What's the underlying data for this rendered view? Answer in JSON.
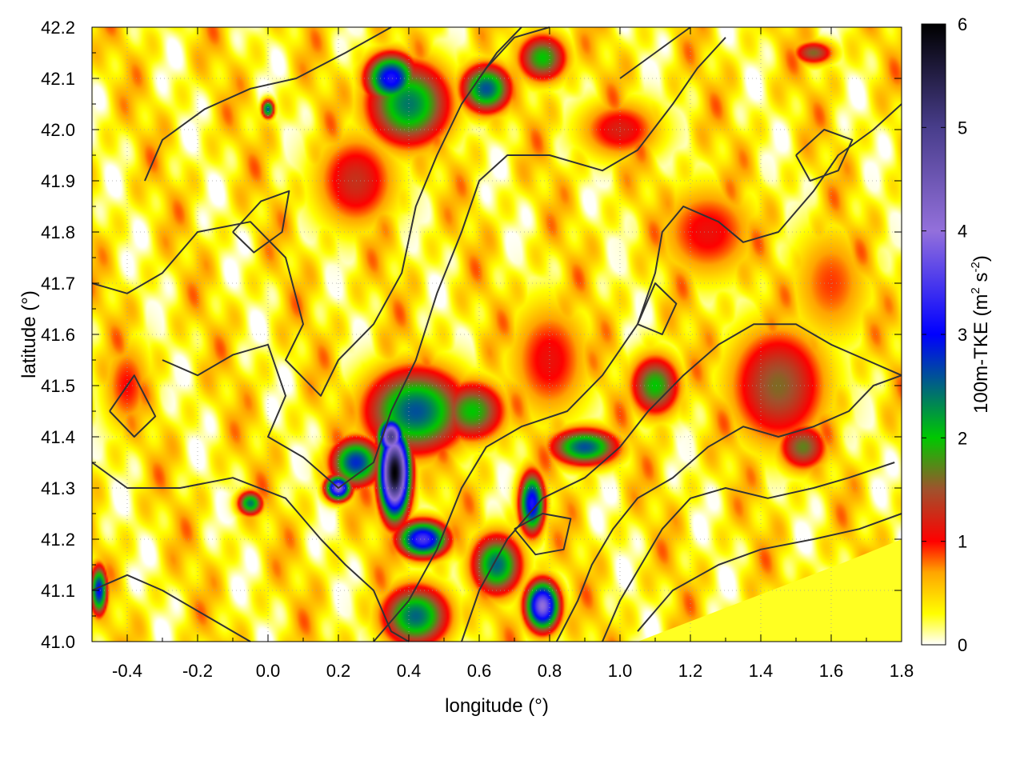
{
  "chart_data": {
    "type": "heatmap",
    "title": "",
    "xlabel": "longitude (°)",
    "ylabel": "latitude (°)",
    "xlim": [
      -0.5,
      1.8
    ],
    "ylim": [
      41.0,
      42.2
    ],
    "x_ticks": [
      {
        "value": -0.4,
        "label": "-0.4"
      },
      {
        "value": -0.2,
        "label": "-0.2"
      },
      {
        "value": 0.0,
        "label": "0.0"
      },
      {
        "value": 0.2,
        "label": "0.2"
      },
      {
        "value": 0.4,
        "label": "0.4"
      },
      {
        "value": 0.6,
        "label": "0.6"
      },
      {
        "value": 0.8,
        "label": "0.8"
      },
      {
        "value": 1.0,
        "label": "1.0"
      },
      {
        "value": 1.2,
        "label": "1.2"
      },
      {
        "value": 1.4,
        "label": "1.4"
      },
      {
        "value": 1.6,
        "label": "1.6"
      },
      {
        "value": 1.8,
        "label": "1.8"
      }
    ],
    "y_ticks": [
      {
        "value": 41.0,
        "label": "41.0"
      },
      {
        "value": 41.1,
        "label": "41.1"
      },
      {
        "value": 41.2,
        "label": "41.2"
      },
      {
        "value": 41.3,
        "label": "41.3"
      },
      {
        "value": 41.4,
        "label": "41.4"
      },
      {
        "value": 41.5,
        "label": "41.5"
      },
      {
        "value": 41.6,
        "label": "41.6"
      },
      {
        "value": 41.7,
        "label": "41.7"
      },
      {
        "value": 41.8,
        "label": "41.8"
      },
      {
        "value": 41.9,
        "label": "41.9"
      },
      {
        "value": 42.0,
        "label": "42.0"
      },
      {
        "value": 42.1,
        "label": "42.1"
      },
      {
        "value": 42.2,
        "label": "42.2"
      }
    ],
    "grid": true,
    "colorbar": {
      "label_main": "100m-TKE (m",
      "label_sup1": "2",
      "label_mid": " s",
      "label_sup2": "-2",
      "label_end": ")",
      "range": [
        0,
        6
      ],
      "ticks": [
        {
          "value": 0,
          "label": "0"
        },
        {
          "value": 1,
          "label": "1"
        },
        {
          "value": 2,
          "label": "2"
        },
        {
          "value": 3,
          "label": "3"
        },
        {
          "value": 4,
          "label": "4"
        },
        {
          "value": 5,
          "label": "5"
        },
        {
          "value": 6,
          "label": "6"
        }
      ],
      "stops": [
        {
          "value": 0.0,
          "color": "#ffffff"
        },
        {
          "value": 0.3,
          "color": "#ffff00"
        },
        {
          "value": 0.7,
          "color": "#ffa500"
        },
        {
          "value": 1.0,
          "color": "#ff0000"
        },
        {
          "value": 1.5,
          "color": "#a0522d"
        },
        {
          "value": 2.0,
          "color": "#00c800"
        },
        {
          "value": 3.0,
          "color": "#0000ff"
        },
        {
          "value": 4.0,
          "color": "#9370db"
        },
        {
          "value": 5.0,
          "color": "#483d8b"
        },
        {
          "value": 6.0,
          "color": "#000000"
        }
      ]
    },
    "hotspots": [
      {
        "lon": 0.36,
        "lat": 41.33,
        "peak": 6.0,
        "rlon": 0.035,
        "rlat": 0.07
      },
      {
        "lon": 0.35,
        "lat": 41.4,
        "peak": 5.0,
        "rlon": 0.03,
        "rlat": 0.03
      },
      {
        "lon": 0.42,
        "lat": 41.45,
        "peak": 2.6,
        "rlon": 0.12,
        "rlat": 0.07
      },
      {
        "lon": 0.58,
        "lat": 41.45,
        "peak": 2.0,
        "rlon": 0.08,
        "rlat": 0.05
      },
      {
        "lon": 0.25,
        "lat": 41.35,
        "peak": 2.8,
        "rlon": 0.06,
        "rlat": 0.04
      },
      {
        "lon": 0.2,
        "lat": 41.3,
        "peak": 4.0,
        "rlon": 0.03,
        "rlat": 0.02
      },
      {
        "lon": 0.44,
        "lat": 41.2,
        "peak": 3.5,
        "rlon": 0.06,
        "rlat": 0.03
      },
      {
        "lon": 0.78,
        "lat": 41.07,
        "peak": 4.0,
        "rlon": 0.04,
        "rlat": 0.04
      },
      {
        "lon": 0.75,
        "lat": 41.27,
        "peak": 3.2,
        "rlon": 0.03,
        "rlat": 0.05
      },
      {
        "lon": 0.65,
        "lat": 41.15,
        "peak": 2.5,
        "rlon": 0.06,
        "rlat": 0.05
      },
      {
        "lon": 0.42,
        "lat": 41.05,
        "peak": 2.5,
        "rlon": 0.08,
        "rlat": 0.05
      },
      {
        "lon": 0.35,
        "lat": 42.1,
        "peak": 3.2,
        "rlon": 0.06,
        "rlat": 0.04
      },
      {
        "lon": 0.4,
        "lat": 42.05,
        "peak": 2.4,
        "rlon": 0.1,
        "rlat": 0.07
      },
      {
        "lon": 0.62,
        "lat": 42.08,
        "peak": 2.6,
        "rlon": 0.06,
        "rlat": 0.04
      },
      {
        "lon": 0.78,
        "lat": 42.14,
        "peak": 2.0,
        "rlon": 0.06,
        "rlat": 0.04
      },
      {
        "lon": 0.0,
        "lat": 42.04,
        "peak": 2.6,
        "rlon": 0.015,
        "rlat": 0.015
      },
      {
        "lon": 1.1,
        "lat": 41.5,
        "peak": 2.0,
        "rlon": 0.06,
        "rlat": 0.05
      },
      {
        "lon": 1.45,
        "lat": 41.5,
        "peak": 1.6,
        "rlon": 0.12,
        "rlat": 0.1
      },
      {
        "lon": 1.52,
        "lat": 41.38,
        "peak": 1.7,
        "rlon": 0.06,
        "rlat": 0.04
      },
      {
        "lon": 0.9,
        "lat": 41.38,
        "peak": 2.6,
        "rlon": 0.08,
        "rlat": 0.03
      },
      {
        "lon": -0.48,
        "lat": 41.1,
        "peak": 3.0,
        "rlon": 0.02,
        "rlat": 0.04
      },
      {
        "lon": -0.05,
        "lat": 41.27,
        "peak": 2.4,
        "rlon": 0.03,
        "rlat": 0.02
      },
      {
        "lon": 0.25,
        "lat": 41.9,
        "peak": 1.3,
        "rlon": 0.1,
        "rlat": 0.08
      },
      {
        "lon": 1.25,
        "lat": 41.8,
        "peak": 1.1,
        "rlon": 0.12,
        "rlat": 0.08
      },
      {
        "lon": 1.55,
        "lat": 42.15,
        "peak": 1.6,
        "rlon": 0.05,
        "rlat": 0.02
      },
      {
        "lon": 0.8,
        "lat": 41.55,
        "peak": 1.1,
        "rlon": 0.1,
        "rlat": 0.1
      },
      {
        "lon": -0.4,
        "lat": 41.5,
        "peak": 1.0,
        "rlon": 0.06,
        "rlat": 0.08
      },
      {
        "lon": 1.0,
        "lat": 42.0,
        "peak": 1.2,
        "rlon": 0.1,
        "rlat": 0.05
      },
      {
        "lon": 1.6,
        "lat": 41.7,
        "peak": 0.9,
        "rlon": 0.1,
        "rlat": 0.1
      }
    ],
    "sea_region": [
      [
        1.05,
        41.0
      ],
      [
        1.62,
        41.15
      ],
      [
        1.8,
        41.2
      ],
      [
        1.8,
        41.0
      ]
    ],
    "contours": [
      [
        [
          -0.35,
          41.9
        ],
        [
          -0.3,
          41.98
        ],
        [
          -0.18,
          42.04
        ],
        [
          -0.05,
          42.08
        ],
        [
          0.08,
          42.1
        ],
        [
          0.22,
          42.15
        ],
        [
          0.35,
          42.2
        ]
      ],
      [
        [
          -0.5,
          41.7
        ],
        [
          -0.4,
          41.68
        ],
        [
          -0.3,
          41.72
        ],
        [
          -0.2,
          41.8
        ],
        [
          -0.05,
          41.82
        ],
        [
          0.05,
          41.75
        ],
        [
          0.1,
          41.62
        ],
        [
          0.05,
          41.55
        ],
        [
          0.15,
          41.48
        ],
        [
          0.2,
          41.55
        ],
        [
          0.3,
          41.62
        ],
        [
          0.38,
          41.72
        ],
        [
          0.42,
          41.85
        ],
        [
          0.48,
          41.95
        ],
        [
          0.55,
          42.05
        ],
        [
          0.62,
          42.12
        ],
        [
          0.7,
          42.18
        ],
        [
          0.8,
          42.2
        ]
      ],
      [
        [
          -0.3,
          41.55
        ],
        [
          -0.2,
          41.52
        ],
        [
          -0.1,
          41.56
        ],
        [
          0.0,
          41.58
        ],
        [
          0.05,
          41.48
        ],
        [
          0.0,
          41.4
        ],
        [
          0.1,
          41.36
        ],
        [
          0.2,
          41.3
        ],
        [
          0.3,
          41.35
        ],
        [
          0.35,
          41.45
        ],
        [
          0.42,
          41.55
        ],
        [
          0.48,
          41.68
        ],
        [
          0.55,
          41.8
        ],
        [
          0.6,
          41.9
        ],
        [
          0.68,
          41.95
        ],
        [
          0.8,
          41.95
        ],
        [
          0.95,
          41.92
        ],
        [
          1.05,
          41.96
        ],
        [
          1.15,
          42.05
        ],
        [
          1.22,
          42.12
        ],
        [
          1.3,
          42.18
        ]
      ],
      [
        [
          -0.5,
          41.35
        ],
        [
          -0.4,
          41.3
        ],
        [
          -0.25,
          41.3
        ],
        [
          -0.1,
          41.32
        ],
        [
          0.05,
          41.28
        ],
        [
          0.15,
          41.2
        ],
        [
          0.22,
          41.15
        ],
        [
          0.3,
          41.1
        ],
        [
          0.35,
          41.02
        ],
        [
          0.4,
          41.0
        ]
      ],
      [
        [
          0.3,
          41.0
        ],
        [
          0.4,
          41.08
        ],
        [
          0.48,
          41.18
        ],
        [
          0.55,
          41.3
        ],
        [
          0.62,
          41.38
        ],
        [
          0.72,
          41.42
        ],
        [
          0.85,
          41.45
        ],
        [
          0.95,
          41.52
        ],
        [
          1.05,
          41.62
        ],
        [
          1.1,
          41.72
        ],
        [
          1.12,
          41.8
        ],
        [
          1.18,
          41.85
        ],
        [
          1.28,
          41.82
        ],
        [
          1.35,
          41.78
        ],
        [
          1.45,
          41.8
        ],
        [
          1.55,
          41.88
        ],
        [
          1.62,
          41.95
        ],
        [
          1.72,
          42.0
        ],
        [
          1.8,
          42.05
        ]
      ],
      [
        [
          0.55,
          41.0
        ],
        [
          0.6,
          41.1
        ],
        [
          0.68,
          41.2
        ],
        [
          0.78,
          41.28
        ],
        [
          0.9,
          41.32
        ],
        [
          1.0,
          41.38
        ],
        [
          1.08,
          41.45
        ],
        [
          1.18,
          41.52
        ],
        [
          1.28,
          41.58
        ],
        [
          1.38,
          41.62
        ],
        [
          1.5,
          41.62
        ],
        [
          1.6,
          41.58
        ],
        [
          1.7,
          41.55
        ],
        [
          1.8,
          41.52
        ]
      ],
      [
        [
          0.82,
          41.0
        ],
        [
          0.88,
          41.08
        ],
        [
          0.92,
          41.15
        ],
        [
          0.98,
          41.22
        ],
        [
          1.05,
          41.28
        ],
        [
          1.15,
          41.32
        ],
        [
          1.25,
          41.38
        ],
        [
          1.35,
          41.42
        ],
        [
          1.45,
          41.4
        ],
        [
          1.55,
          41.42
        ],
        [
          1.65,
          41.45
        ],
        [
          1.72,
          41.5
        ],
        [
          1.8,
          41.52
        ]
      ],
      [
        [
          0.95,
          41.0
        ],
        [
          1.0,
          41.08
        ],
        [
          1.06,
          41.15
        ],
        [
          1.12,
          41.22
        ],
        [
          1.2,
          41.28
        ],
        [
          1.3,
          41.3
        ],
        [
          1.42,
          41.28
        ],
        [
          1.55,
          41.3
        ],
        [
          1.65,
          41.32
        ],
        [
          1.78,
          41.35
        ]
      ],
      [
        [
          1.05,
          41.02
        ],
        [
          1.15,
          41.1
        ],
        [
          1.28,
          41.15
        ],
        [
          1.4,
          41.18
        ],
        [
          1.55,
          41.2
        ],
        [
          1.68,
          41.22
        ],
        [
          1.8,
          41.25
        ]
      ],
      [
        [
          -0.5,
          41.1
        ],
        [
          -0.4,
          41.13
        ],
        [
          -0.3,
          41.1
        ],
        [
          -0.2,
          41.06
        ],
        [
          -0.1,
          41.02
        ],
        [
          -0.05,
          41.0
        ]
      ],
      [
        [
          -0.45,
          41.45
        ],
        [
          -0.38,
          41.4
        ],
        [
          -0.32,
          41.44
        ],
        [
          -0.38,
          41.52
        ],
        [
          -0.45,
          41.45
        ]
      ],
      [
        [
          0.7,
          41.22
        ],
        [
          0.78,
          41.25
        ],
        [
          0.86,
          41.24
        ],
        [
          0.84,
          41.18
        ],
        [
          0.76,
          41.17
        ],
        [
          0.7,
          41.22
        ]
      ],
      [
        [
          1.05,
          41.62
        ],
        [
          1.12,
          41.6
        ],
        [
          1.16,
          41.66
        ],
        [
          1.1,
          41.7
        ],
        [
          1.05,
          41.62
        ]
      ],
      [
        [
          -0.1,
          41.8
        ],
        [
          -0.02,
          41.86
        ],
        [
          0.06,
          41.88
        ],
        [
          0.04,
          41.8
        ],
        [
          -0.04,
          41.76
        ],
        [
          -0.1,
          41.8
        ]
      ],
      [
        [
          1.5,
          41.95
        ],
        [
          1.58,
          42.0
        ],
        [
          1.66,
          41.98
        ],
        [
          1.62,
          41.92
        ],
        [
          1.54,
          41.9
        ],
        [
          1.5,
          41.95
        ]
      ],
      [
        [
          0.6,
          42.1
        ],
        [
          0.65,
          42.15
        ],
        [
          0.72,
          42.2
        ]
      ],
      [
        [
          1.0,
          42.1
        ],
        [
          1.1,
          42.15
        ],
        [
          1.2,
          42.2
        ]
      ]
    ]
  }
}
